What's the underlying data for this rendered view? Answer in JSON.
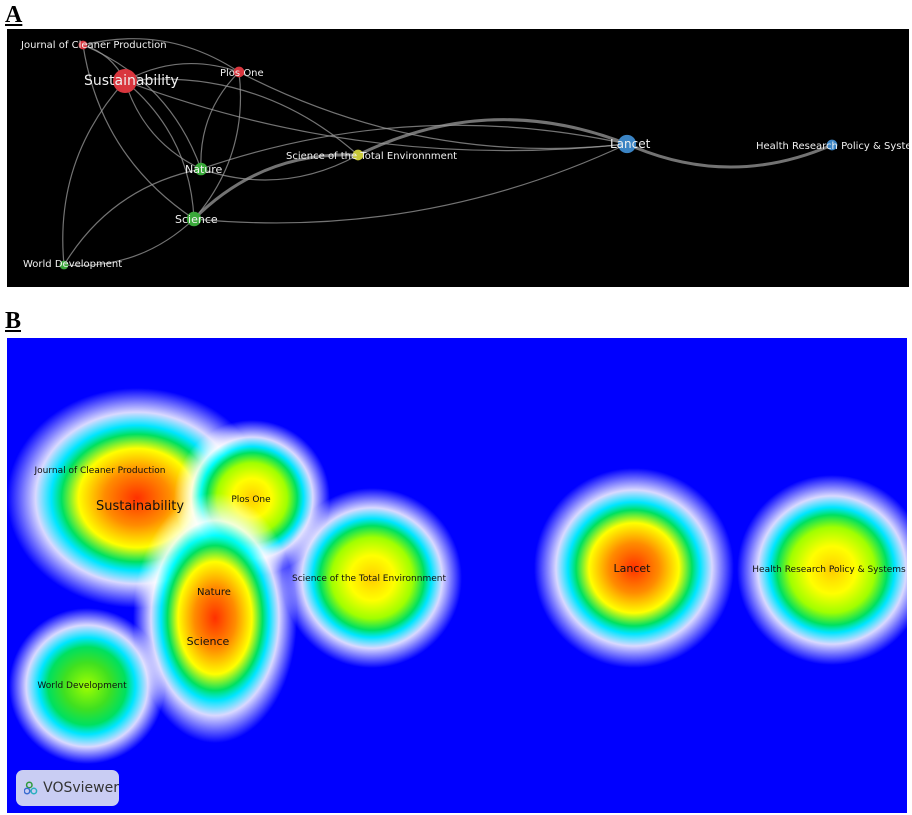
{
  "panels": [
    {
      "letter": "A"
    },
    {
      "letter": "B"
    }
  ],
  "nodes": [
    {
      "id": "jcp",
      "label": "Journal of Cleaner Production",
      "cluster": "red",
      "weight": 2
    },
    {
      "id": "sus",
      "label": "Sustainability",
      "cluster": "red",
      "weight": 10
    },
    {
      "id": "plos",
      "label": "Plos One",
      "cluster": "red",
      "weight": 3
    },
    {
      "id": "stoten",
      "label": "Science of the Total Environnment",
      "cluster": "yellow",
      "weight": 3
    },
    {
      "id": "nat",
      "label": "Nature",
      "cluster": "green",
      "weight": 4
    },
    {
      "id": "sci",
      "label": "Science",
      "cluster": "green",
      "weight": 5
    },
    {
      "id": "wd",
      "label": "World Development",
      "cluster": "green",
      "weight": 2
    },
    {
      "id": "lan",
      "label": "Lancet",
      "cluster": "blue",
      "weight": 7
    },
    {
      "id": "hrps",
      "label": "Health Research Policy & Systems",
      "cluster": "blue",
      "weight": 3
    }
  ],
  "links": [
    [
      "sus",
      "plos"
    ],
    [
      "sus",
      "nat"
    ],
    [
      "sus",
      "sci"
    ],
    [
      "sus",
      "lan"
    ],
    [
      "sus",
      "stoten"
    ],
    [
      "sus",
      "jcp"
    ],
    [
      "jcp",
      "plos"
    ],
    [
      "jcp",
      "sci"
    ],
    [
      "jcp",
      "nat"
    ],
    [
      "plos",
      "lan"
    ],
    [
      "plos",
      "sci"
    ],
    [
      "plos",
      "nat"
    ],
    [
      "nat",
      "lan"
    ],
    [
      "nat",
      "stoten"
    ],
    [
      "sci",
      "stoten"
    ],
    [
      "sci",
      "lan"
    ],
    [
      "stoten",
      "lan"
    ],
    [
      "lan",
      "hrps"
    ],
    [
      "wd",
      "sus"
    ],
    [
      "wd",
      "sci"
    ],
    [
      "wd",
      "nat"
    ]
  ],
  "colors": {
    "red": "#d9363e",
    "green": "#3aa83a",
    "blue": "#3b84c4",
    "yellow": "#c9c93a",
    "network_bg": "#000000",
    "density_bg": "#0000ff",
    "edge": "#9a9a9a"
  },
  "watermark": {
    "text": "VOSviewer",
    "icon": "vosviewer-logo-icon"
  }
}
